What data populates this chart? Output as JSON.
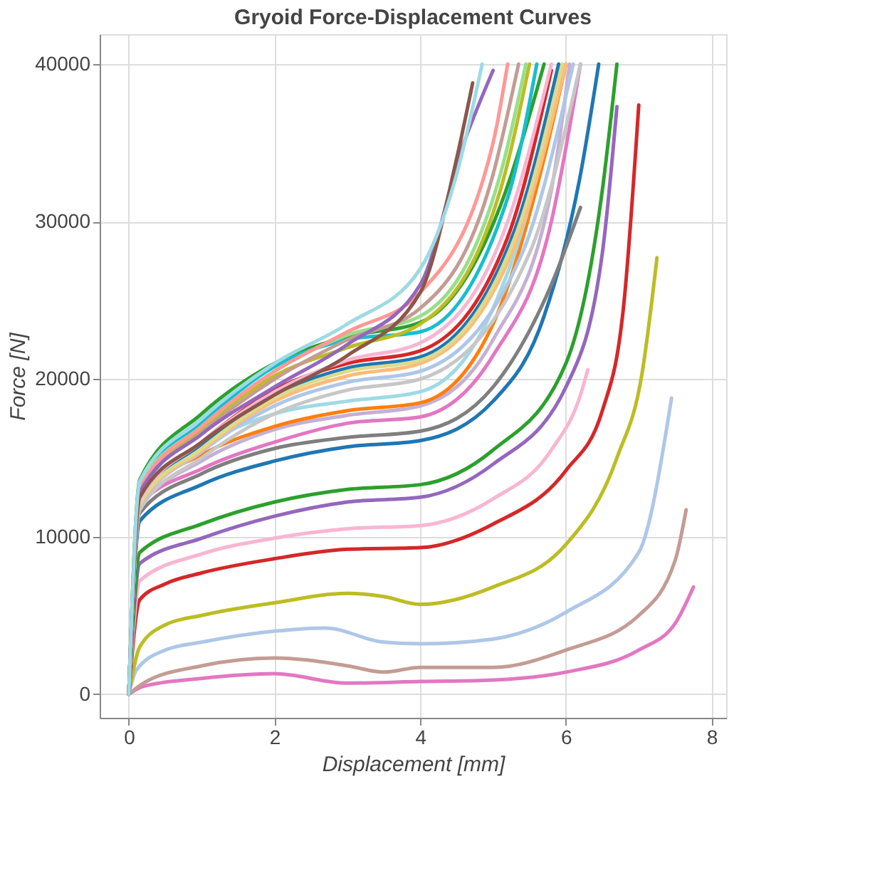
{
  "chart_data": {
    "type": "line",
    "title": "Gryoid Force-Displacement Curves",
    "xlabel": "Displacement [mm]",
    "ylabel": "Force [N]",
    "xlim": [
      -0.4,
      8.2
    ],
    "ylim": [
      -1500,
      41900
    ],
    "xticks": [
      0,
      2,
      4,
      6,
      8
    ],
    "yticks": [
      0,
      10000,
      20000,
      30000,
      40000
    ],
    "grid": true,
    "legend": false,
    "line_style": "solid",
    "marker": "none",
    "series": [
      {
        "color": "#e377c2",
        "x": [
          0,
          0.2,
          1,
          2,
          3,
          4,
          5,
          6,
          7,
          7.5,
          7.75
        ],
        "values": [
          0,
          500,
          1000,
          1300,
          700,
          800,
          900,
          1400,
          2800,
          4500,
          6800
        ]
      },
      {
        "color": "#c49c94",
        "x": [
          0,
          0.2,
          1,
          2,
          3,
          3.5,
          4,
          5,
          6,
          7,
          7.5,
          7.65
        ],
        "values": [
          0,
          700,
          1800,
          2300,
          1800,
          1400,
          1700,
          1700,
          2800,
          5000,
          8500,
          11700
        ]
      },
      {
        "color": "#aec7e8",
        "x": [
          0,
          0.1,
          0.5,
          1,
          2,
          2.7,
          3.5,
          4,
          5,
          6,
          7,
          7.45
        ],
        "values": [
          0,
          1500,
          2800,
          3300,
          4000,
          4200,
          3300,
          3200,
          3500,
          5200,
          9000,
          18800
        ]
      },
      {
        "color": "#bcbd22",
        "x": [
          0,
          0.15,
          0.5,
          1,
          2,
          3,
          3.5,
          4,
          5,
          6,
          6.7,
          7.05,
          7.25
        ],
        "values": [
          0,
          3000,
          4400,
          5000,
          5800,
          6400,
          6200,
          5700,
          6800,
          9500,
          15000,
          20500,
          27700
        ]
      },
      {
        "color": "#d62728",
        "x": [
          0,
          0.15,
          0.5,
          1,
          2,
          3,
          4,
          5,
          6,
          6.5,
          6.8,
          7.0
        ],
        "values": [
          0,
          6000,
          7000,
          7700,
          8600,
          9200,
          9300,
          10800,
          14200,
          18000,
          25000,
          37400
        ]
      },
      {
        "color": "#f7b6d2",
        "x": [
          0,
          0.15,
          1,
          2,
          3,
          4,
          5,
          5.8,
          6.2,
          6.3
        ],
        "values": [
          0,
          7200,
          8900,
          9900,
          10500,
          10700,
          12400,
          15500,
          19000,
          20600
        ]
      },
      {
        "color": "#9467bd",
        "x": [
          0,
          0.15,
          1,
          2,
          3,
          4,
          5,
          6,
          6.5,
          6.7
        ],
        "values": [
          0,
          8300,
          9900,
          11300,
          12200,
          12500,
          14600,
          19500,
          28000,
          37300
        ]
      },
      {
        "color": "#2ca02c",
        "x": [
          0,
          0.15,
          1,
          2,
          3,
          4,
          5,
          6,
          6.5,
          6.7
        ],
        "values": [
          0,
          9000,
          10800,
          12200,
          13000,
          13300,
          15500,
          21000,
          32000,
          40000
        ]
      },
      {
        "color": "#1f77b4",
        "x": [
          0,
          0.15,
          1,
          2,
          3,
          4,
          5,
          5.7,
          6.2,
          6.45
        ],
        "values": [
          0,
          11000,
          13300,
          14800,
          15700,
          16100,
          18600,
          24000,
          33000,
          40000
        ]
      },
      {
        "color": "#7f7f7f",
        "x": [
          0,
          0.15,
          1,
          2,
          3,
          4,
          5,
          5.8,
          6.2
        ],
        "values": [
          0,
          11500,
          14000,
          15600,
          16300,
          16700,
          19500,
          26000,
          30900
        ]
      },
      {
        "color": "#c5b0d5",
        "x": [
          0,
          0.15,
          1,
          2,
          3,
          4,
          5,
          5.8,
          6.05
        ],
        "values": [
          0,
          11800,
          14800,
          16800,
          17700,
          18300,
          22500,
          32000,
          40000
        ]
      },
      {
        "color": "#e377c2",
        "x": [
          0,
          0.15,
          1,
          2,
          3,
          4,
          5,
          5.8,
          6.2
        ],
        "values": [
          0,
          12000,
          14300,
          16000,
          17200,
          17600,
          21500,
          30000,
          40000
        ]
      },
      {
        "color": "#ff7f0e",
        "x": [
          0,
          0.15,
          1,
          2,
          3,
          4,
          5,
          5.7,
          6.0
        ],
        "values": [
          0,
          12500,
          15200,
          17000,
          18000,
          18500,
          23500,
          34000,
          40000
        ]
      },
      {
        "color": "#9edae5",
        "x": [
          0,
          0.15,
          1,
          2,
          3,
          4,
          5,
          5.6,
          5.9
        ],
        "values": [
          0,
          12800,
          15800,
          17800,
          18600,
          19200,
          24500,
          33000,
          40000
        ]
      },
      {
        "color": "#c7c7c7",
        "x": [
          0,
          0.15,
          1,
          2,
          3,
          4,
          5.5,
          6.2
        ],
        "values": [
          0,
          11700,
          15000,
          17800,
          19300,
          20000,
          28000,
          40000
        ]
      },
      {
        "color": "#aec7e8",
        "x": [
          0,
          0.15,
          1,
          2,
          3,
          4,
          5.4,
          6.1
        ],
        "values": [
          0,
          11900,
          15400,
          18300,
          19800,
          20500,
          28000,
          40000
        ]
      },
      {
        "color": "#ffbb78",
        "x": [
          0,
          0.15,
          1,
          2,
          3,
          4,
          5.3,
          6.0
        ],
        "values": [
          0,
          12000,
          15500,
          18600,
          20200,
          21000,
          28500,
          40000
        ]
      },
      {
        "color": "#1f77b4",
        "x": [
          0,
          0.15,
          1,
          2,
          3,
          4,
          5.3,
          5.9
        ],
        "values": [
          0,
          12200,
          15800,
          19000,
          20700,
          21400,
          29500,
          40000
        ]
      },
      {
        "color": "#dbdb8d",
        "x": [
          0,
          0.15,
          1,
          2,
          3,
          4,
          5.3,
          5.95
        ],
        "values": [
          0,
          12100,
          15600,
          18800,
          20500,
          21200,
          29000,
          40000
        ]
      },
      {
        "color": "#d62728",
        "x": [
          0,
          0.15,
          1,
          2,
          3,
          4,
          5.2,
          5.8
        ],
        "values": [
          0,
          12400,
          16000,
          19300,
          21000,
          21800,
          29000,
          39600
        ]
      },
      {
        "color": "#f7b6d2",
        "x": [
          0,
          0.15,
          1,
          2,
          3,
          4,
          5.2,
          5.8
        ],
        "values": [
          0,
          12300,
          16000,
          19200,
          21200,
          22300,
          30000,
          40000
        ]
      },
      {
        "color": "#2ca02c",
        "x": [
          0,
          0.15,
          1,
          2,
          3,
          4,
          5.1,
          5.7
        ],
        "values": [
          0,
          13600,
          17800,
          21000,
          22700,
          23600,
          31000,
          40000
        ]
      },
      {
        "color": "#17becf",
        "x": [
          0,
          0.15,
          1,
          2,
          3,
          4,
          5.2,
          5.6
        ],
        "values": [
          0,
          13300,
          17200,
          20800,
          22500,
          23000,
          31500,
          40000
        ]
      },
      {
        "color": "#bcbd22",
        "x": [
          0,
          0.15,
          1,
          2,
          3,
          4,
          5.1,
          5.5
        ],
        "values": [
          0,
          12600,
          16800,
          20200,
          22000,
          23500,
          32000,
          40000
        ]
      },
      {
        "color": "#98df8a",
        "x": [
          0,
          0.15,
          1,
          2,
          3,
          4,
          5.1,
          5.45
        ],
        "values": [
          0,
          13200,
          17000,
          20500,
          22800,
          24000,
          33000,
          40000
        ]
      },
      {
        "color": "#c49c94",
        "x": [
          0,
          0.15,
          1,
          2,
          3,
          4,
          5.0,
          5.35
        ],
        "values": [
          0,
          12800,
          16600,
          20000,
          22500,
          24500,
          33000,
          40000
        ]
      },
      {
        "color": "#ff9896",
        "x": [
          0,
          0.15,
          1,
          2,
          3,
          4,
          5.0,
          5.2
        ],
        "values": [
          0,
          13000,
          17000,
          20500,
          23000,
          25500,
          35000,
          40000
        ]
      },
      {
        "color": "#9467bd",
        "x": [
          0,
          0.15,
          1,
          2,
          3,
          4,
          4.6,
          5.0
        ],
        "values": [
          0,
          12800,
          16500,
          19500,
          22200,
          26000,
          35000,
          39600
        ]
      },
      {
        "color": "#8c564b",
        "x": [
          0,
          0.15,
          1,
          2,
          3,
          4,
          4.5,
          4.72
        ],
        "values": [
          0,
          12500,
          16000,
          19000,
          21500,
          25500,
          34000,
          38800
        ]
      },
      {
        "color": "#9edae5",
        "x": [
          0,
          0.15,
          1,
          2,
          3,
          4,
          4.5,
          4.85
        ],
        "values": [
          0,
          13500,
          17500,
          21000,
          23500,
          27000,
          33000,
          40000
        ]
      }
    ]
  }
}
